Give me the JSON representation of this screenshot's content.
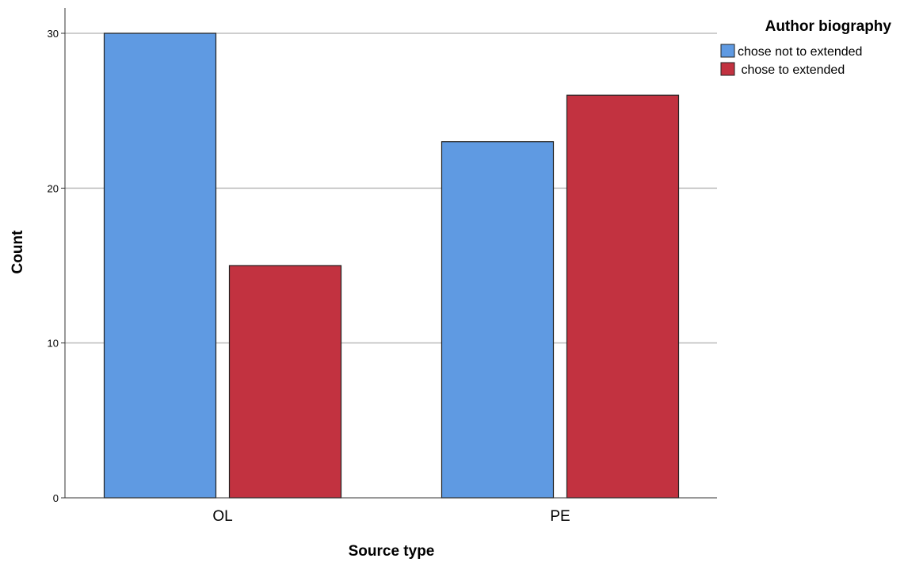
{
  "chart_data": {
    "type": "bar",
    "categories": [
      "OL",
      "PE"
    ],
    "series": [
      {
        "name": "chose not to extended",
        "values": [
          30,
          23
        ],
        "color": "#5f9ae2"
      },
      {
        "name": " chose to extended",
        "values": [
          15,
          26
        ],
        "color": "#c23240"
      }
    ],
    "xlabel": "Source type",
    "ylabel": "Count",
    "ylim": [
      0,
      30
    ],
    "yticks": [
      0,
      10,
      20,
      30
    ],
    "grid": true,
    "legend_title": "Author biography",
    "legend_position": "top-right"
  }
}
